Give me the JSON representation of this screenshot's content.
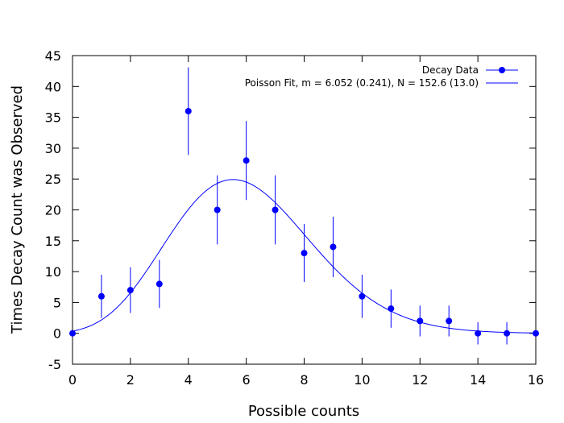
{
  "chart_data": {
    "type": "scatter",
    "xlabel": "Possible counts",
    "ylabel": "Times Decay Count was Observed",
    "xlim": [
      0,
      16
    ],
    "ylim": [
      -5,
      45
    ],
    "xticks": [
      0,
      2,
      4,
      6,
      8,
      10,
      12,
      14,
      16
    ],
    "yticks": [
      -5,
      0,
      5,
      10,
      15,
      20,
      25,
      30,
      35,
      40,
      45
    ],
    "grid": false,
    "legend_position": "top-right",
    "colors": {
      "series": "#0000ff",
      "axes": "#000000"
    },
    "series": [
      {
        "name": "Decay Data",
        "kind": "points-with-errorbars",
        "x": [
          0,
          1,
          2,
          3,
          4,
          5,
          6,
          7,
          8,
          9,
          10,
          11,
          12,
          13,
          14,
          15,
          16
        ],
        "y": [
          0,
          6,
          7,
          8,
          36,
          20,
          28,
          20,
          13,
          14,
          6,
          4,
          2,
          2,
          0,
          0,
          0
        ],
        "yerr": [
          0,
          3.5,
          3.7,
          3.9,
          7.1,
          5.6,
          6.4,
          5.6,
          4.7,
          4.9,
          3.5,
          3.1,
          2.5,
          2.5,
          1.8,
          1.8,
          0
        ]
      },
      {
        "name": "Poisson Fit, m = 6.052 (0.241), N = 152.6 (13.0)",
        "kind": "fit-curve",
        "model": "poisson",
        "m": 6.052,
        "N": 152.6,
        "x_range": [
          0,
          16
        ]
      }
    ]
  }
}
